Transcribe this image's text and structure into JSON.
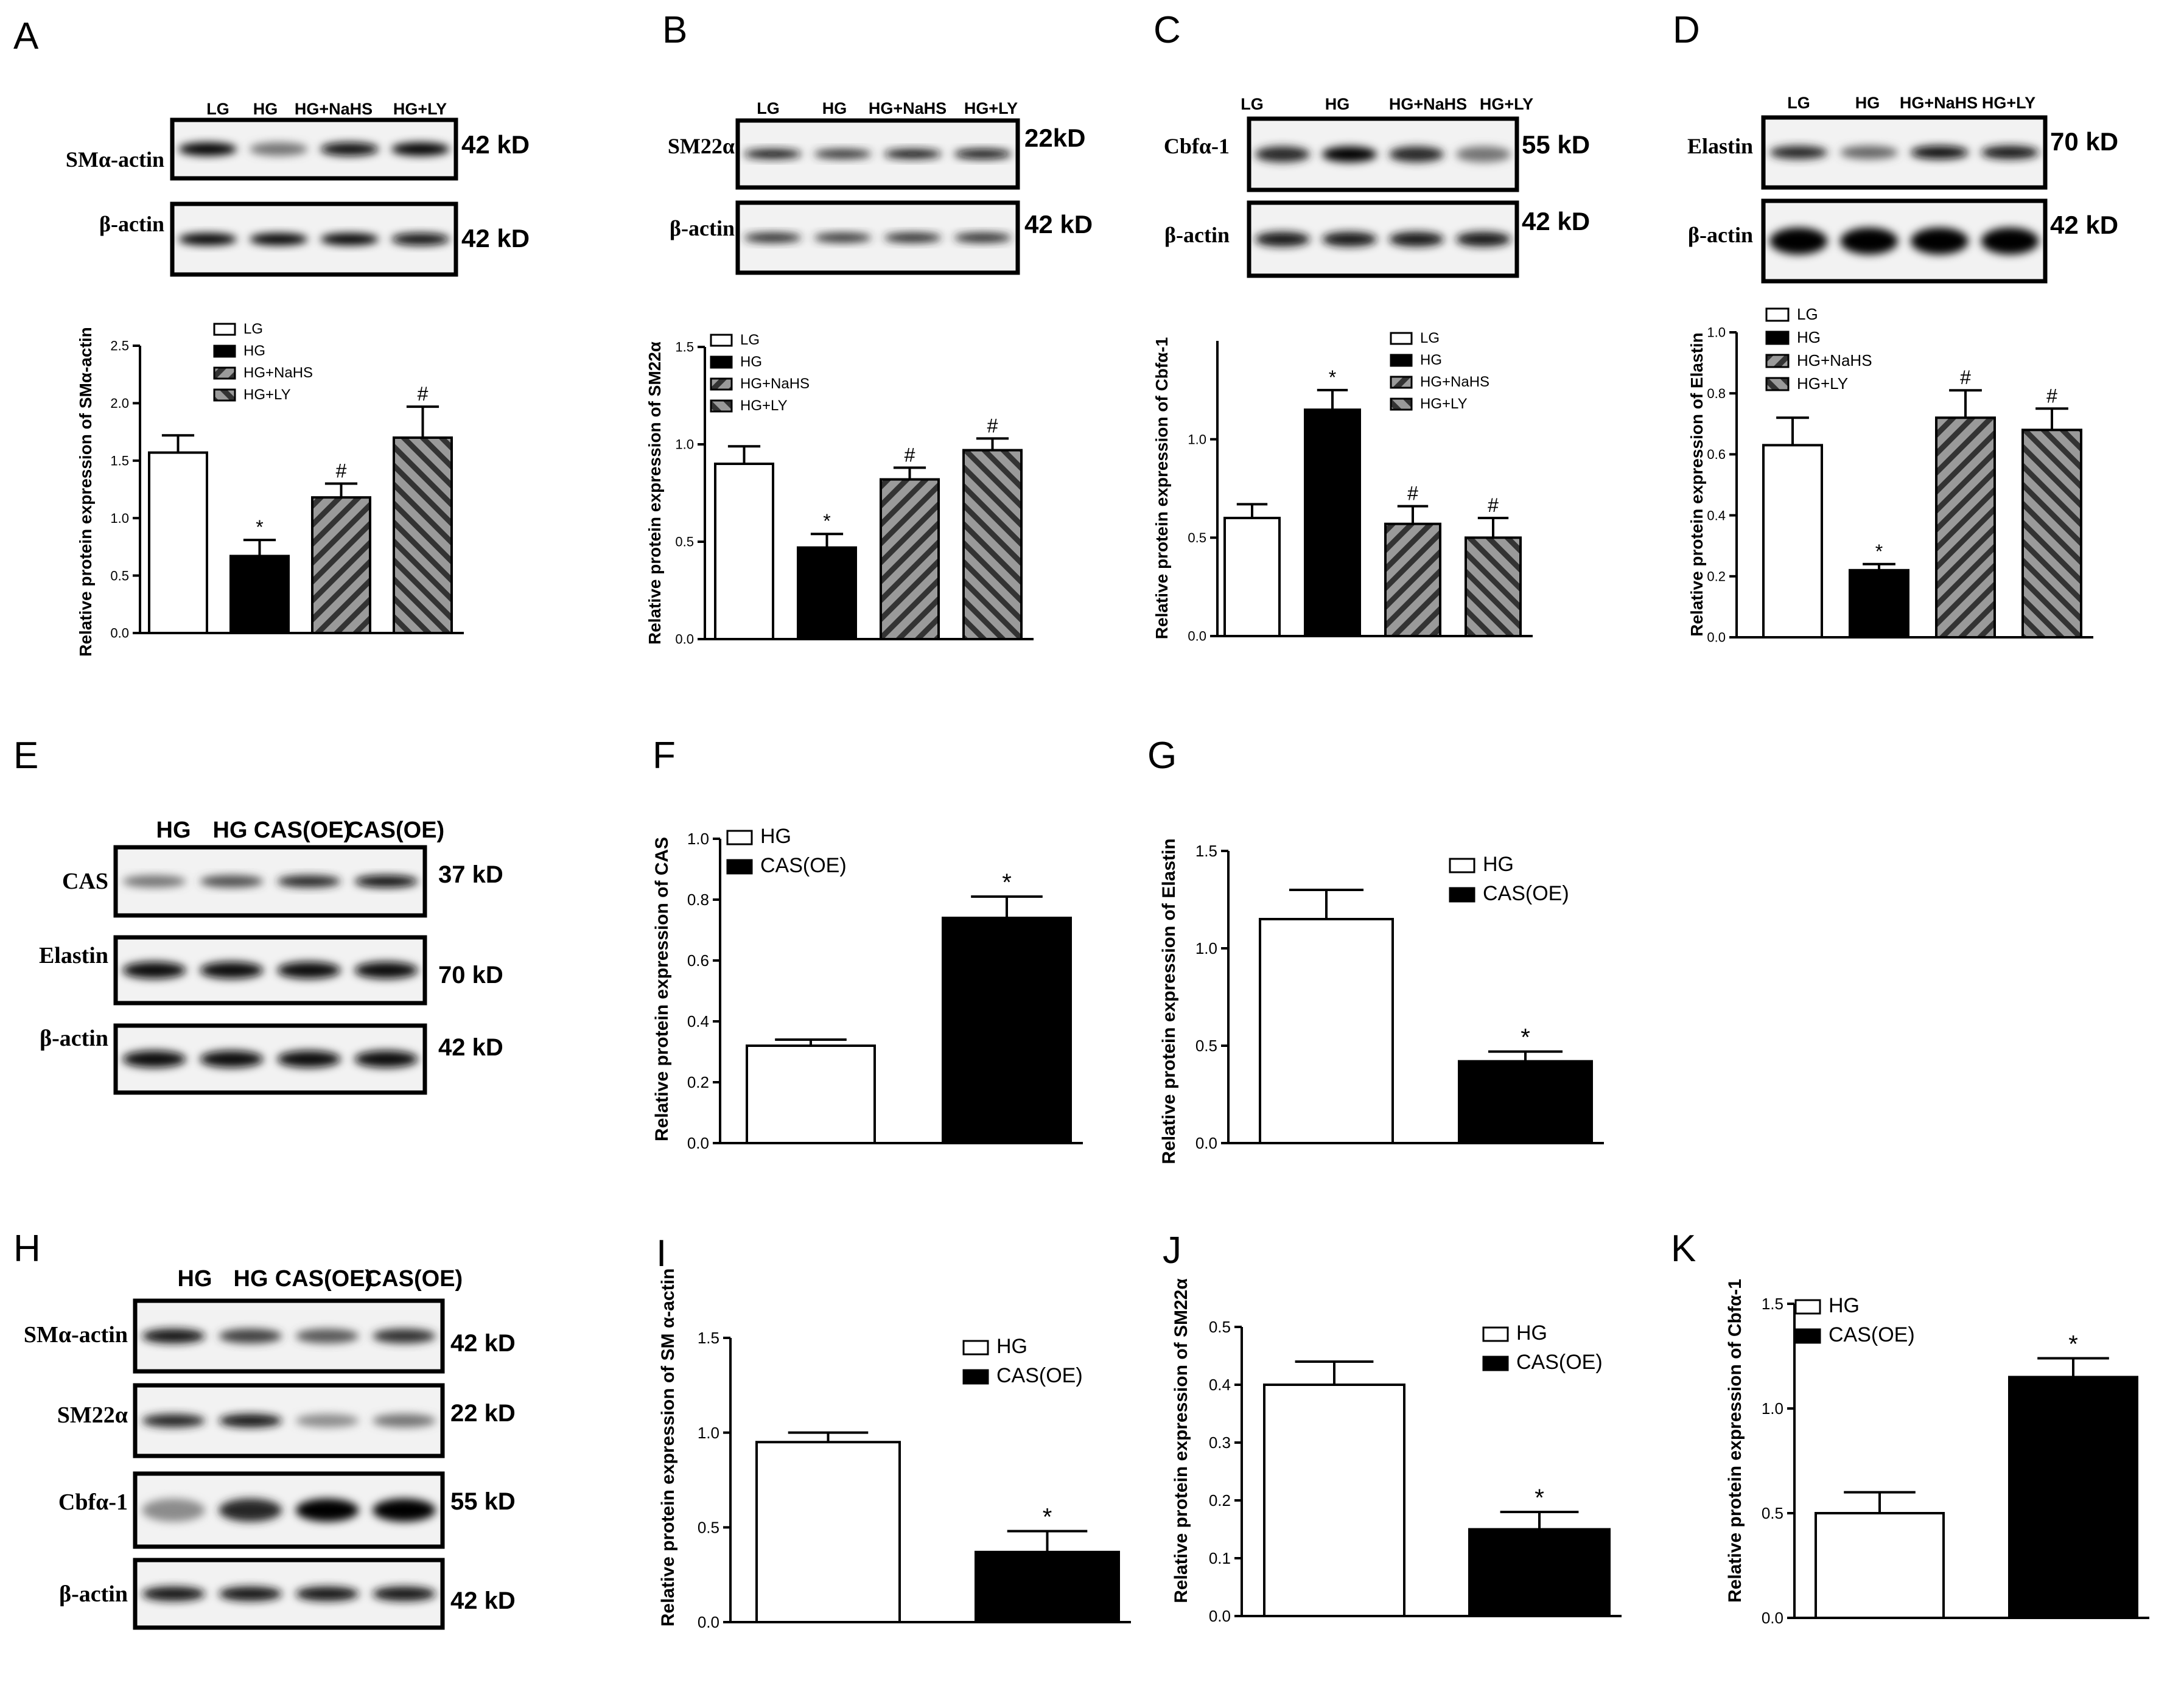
{
  "panel_letters": [
    "A",
    "B",
    "C",
    "D",
    "E",
    "F",
    "G",
    "H",
    "I",
    "J",
    "K"
  ],
  "colors": {
    "bar_white": "#ffffff",
    "bar_black": "#000000",
    "bar_hatch_fill": "#9a9a9a",
    "axis": "#000000"
  },
  "blots": {
    "A": {
      "lanes": [
        "LG",
        "HG",
        "HG+NaHS",
        "HG+LY"
      ],
      "rows": [
        {
          "protein": "SMα-actin",
          "size": "42 kD"
        },
        {
          "protein": "β-actin",
          "size": "42 kD"
        }
      ]
    },
    "B": {
      "lanes": [
        "LG",
        "HG",
        "HG+NaHS",
        "HG+LY"
      ],
      "rows": [
        {
          "protein": "SM22α",
          "size": "22kD"
        },
        {
          "protein": "β-actin",
          "size": "42 kD"
        }
      ]
    },
    "C": {
      "lanes": [
        "LG",
        "HG",
        "HG+NaHS",
        "HG+LY"
      ],
      "rows": [
        {
          "protein": "Cbfα-1",
          "size": "55 kD"
        },
        {
          "protein": "β-actin",
          "size": "42 kD"
        }
      ]
    },
    "D": {
      "lanes": [
        "LG",
        "HG",
        "HG+NaHS",
        "HG+LY"
      ],
      "rows": [
        {
          "protein": "Elastin",
          "size": "70 kD"
        },
        {
          "protein": "β-actin",
          "size": "42 kD"
        }
      ]
    },
    "E": {
      "lanes": [
        "HG",
        "HG",
        "CAS(OE)",
        "CAS(OE)"
      ],
      "rows": [
        {
          "protein": "CAS",
          "size": "37 kD"
        },
        {
          "protein": "Elastin",
          "size": "70 kD"
        },
        {
          "protein": "β-actin",
          "size": "42 kD"
        }
      ]
    },
    "H": {
      "lanes": [
        "HG",
        "HG",
        "CAS(OE)",
        "CAS(OE)"
      ],
      "rows": [
        {
          "protein": "SMα-actin",
          "size": "42 kD"
        },
        {
          "protein": "SM22α",
          "size": "22 kD"
        },
        {
          "protein": "Cbfα-1",
          "size": "55 kD"
        },
        {
          "protein": "β-actin",
          "size": "42 kD"
        }
      ]
    }
  },
  "chart_data": [
    {
      "panel": "A",
      "type": "bar",
      "categories": [
        "LG",
        "HG",
        "HG+NaHS",
        "HG+LY"
      ],
      "values": [
        1.57,
        0.67,
        1.18,
        1.7
      ],
      "errors": [
        0.15,
        0.14,
        0.12,
        0.27
      ],
      "significance": [
        "",
        "*",
        "#",
        "#"
      ],
      "ylabel": "Relative protein expression of SMα-actin",
      "ylim": [
        0,
        2.5
      ],
      "yticks": [
        "0.0",
        "0.5",
        "1.0",
        "1.5",
        "2.0",
        "2.5"
      ],
      "legend": [
        "LG",
        "HG",
        "HG+NaHS",
        "HG+LY"
      ]
    },
    {
      "panel": "B",
      "type": "bar",
      "categories": [
        "LG",
        "HG",
        "HG+NaHS",
        "HG+LY"
      ],
      "values": [
        0.9,
        0.47,
        0.82,
        0.97
      ],
      "errors": [
        0.09,
        0.07,
        0.06,
        0.06
      ],
      "significance": [
        "",
        "*",
        "#",
        "#"
      ],
      "ylabel": "Relative protein expression of SM22α",
      "ylim": [
        0,
        1.5
      ],
      "yticks": [
        "0.0",
        "0.5",
        "1.0",
        "1.5"
      ],
      "legend": [
        "LG",
        "HG",
        "HG+NaHS",
        "HG+LY"
      ]
    },
    {
      "panel": "C",
      "type": "bar",
      "categories": [
        "LG",
        "HG",
        "HG+NaHS",
        "HG+LY"
      ],
      "values": [
        0.6,
        1.15,
        0.57,
        0.5
      ],
      "errors": [
        0.07,
        0.1,
        0.09,
        0.1
      ],
      "significance": [
        "",
        "*",
        "#",
        "#"
      ],
      "ylabel": "Relative protein expression of Cbfα-1",
      "ylim": [
        0,
        1.5
      ],
      "yticks": [
        "0.0",
        "0.5",
        "1.0"
      ],
      "legend": [
        "LG",
        "HG",
        "HG+NaHS",
        "HG+LY"
      ]
    },
    {
      "panel": "D",
      "type": "bar",
      "categories": [
        "LG",
        "HG",
        "HG+NaHS",
        "HG+LY"
      ],
      "values": [
        0.63,
        0.22,
        0.72,
        0.68
      ],
      "errors": [
        0.09,
        0.02,
        0.09,
        0.07
      ],
      "significance": [
        "",
        "*",
        "#",
        "#"
      ],
      "ylabel": "Relative protein expression of Elastin",
      "ylim": [
        0,
        1.0
      ],
      "yticks": [
        "0.0",
        "0.2",
        "0.4",
        "0.6",
        "0.8",
        "1.0"
      ],
      "legend": [
        "LG",
        "HG",
        "HG+NaHS",
        "HG+LY"
      ]
    },
    {
      "panel": "F",
      "type": "bar",
      "categories": [
        "HG",
        "CAS(OE)"
      ],
      "values": [
        0.32,
        0.74
      ],
      "errors": [
        0.02,
        0.07
      ],
      "significance": [
        "",
        "*"
      ],
      "ylabel": "Relative protein expression of CAS",
      "ylim": [
        0,
        1.0
      ],
      "yticks": [
        "0.0",
        "0.2",
        "0.4",
        "0.6",
        "0.8",
        "1.0"
      ],
      "legend": [
        "HG",
        "CAS(OE)"
      ]
    },
    {
      "panel": "G",
      "type": "bar",
      "categories": [
        "HG",
        "CAS(OE)"
      ],
      "values": [
        1.15,
        0.42
      ],
      "errors": [
        0.15,
        0.05
      ],
      "significance": [
        "",
        "*"
      ],
      "ylabel": "Relative protein expression of Elastin",
      "ylim": [
        0,
        1.5
      ],
      "yticks": [
        "0.0",
        "0.5",
        "1.0",
        "1.5"
      ],
      "legend": [
        "HG",
        "CAS(OE)"
      ]
    },
    {
      "panel": "I",
      "type": "bar",
      "categories": [
        "HG",
        "CAS(OE)"
      ],
      "values": [
        0.95,
        0.37
      ],
      "errors": [
        0.05,
        0.11
      ],
      "significance": [
        "",
        "*"
      ],
      "ylabel": "Relative protein expression of SM α-actin",
      "ylim": [
        0,
        1.5
      ],
      "yticks": [
        "0.0",
        "0.5",
        "1.0",
        "1.5"
      ],
      "legend": [
        "HG",
        "CAS(OE)"
      ]
    },
    {
      "panel": "J",
      "type": "bar",
      "categories": [
        "HG",
        "CAS(OE)"
      ],
      "values": [
        0.4,
        0.15
      ],
      "errors": [
        0.04,
        0.03
      ],
      "significance": [
        "",
        "*"
      ],
      "ylabel": "Relative protein expression of SM22α",
      "ylim": [
        0,
        0.5
      ],
      "yticks": [
        "0.0",
        "0.1",
        "0.2",
        "0.3",
        "0.4",
        "0.5"
      ],
      "legend": [
        "HG",
        "CAS(OE)"
      ]
    },
    {
      "panel": "K",
      "type": "bar",
      "categories": [
        "HG",
        "CAS(OE)"
      ],
      "values": [
        0.5,
        1.15
      ],
      "errors": [
        0.1,
        0.09
      ],
      "significance": [
        "",
        "*"
      ],
      "ylabel": "Relative protein expression of Cbfα-1",
      "ylim": [
        0,
        1.5
      ],
      "yticks": [
        "0.0",
        "0.5",
        "1.0",
        "1.5"
      ],
      "legend": [
        "HG",
        "CAS(OE)"
      ]
    }
  ]
}
